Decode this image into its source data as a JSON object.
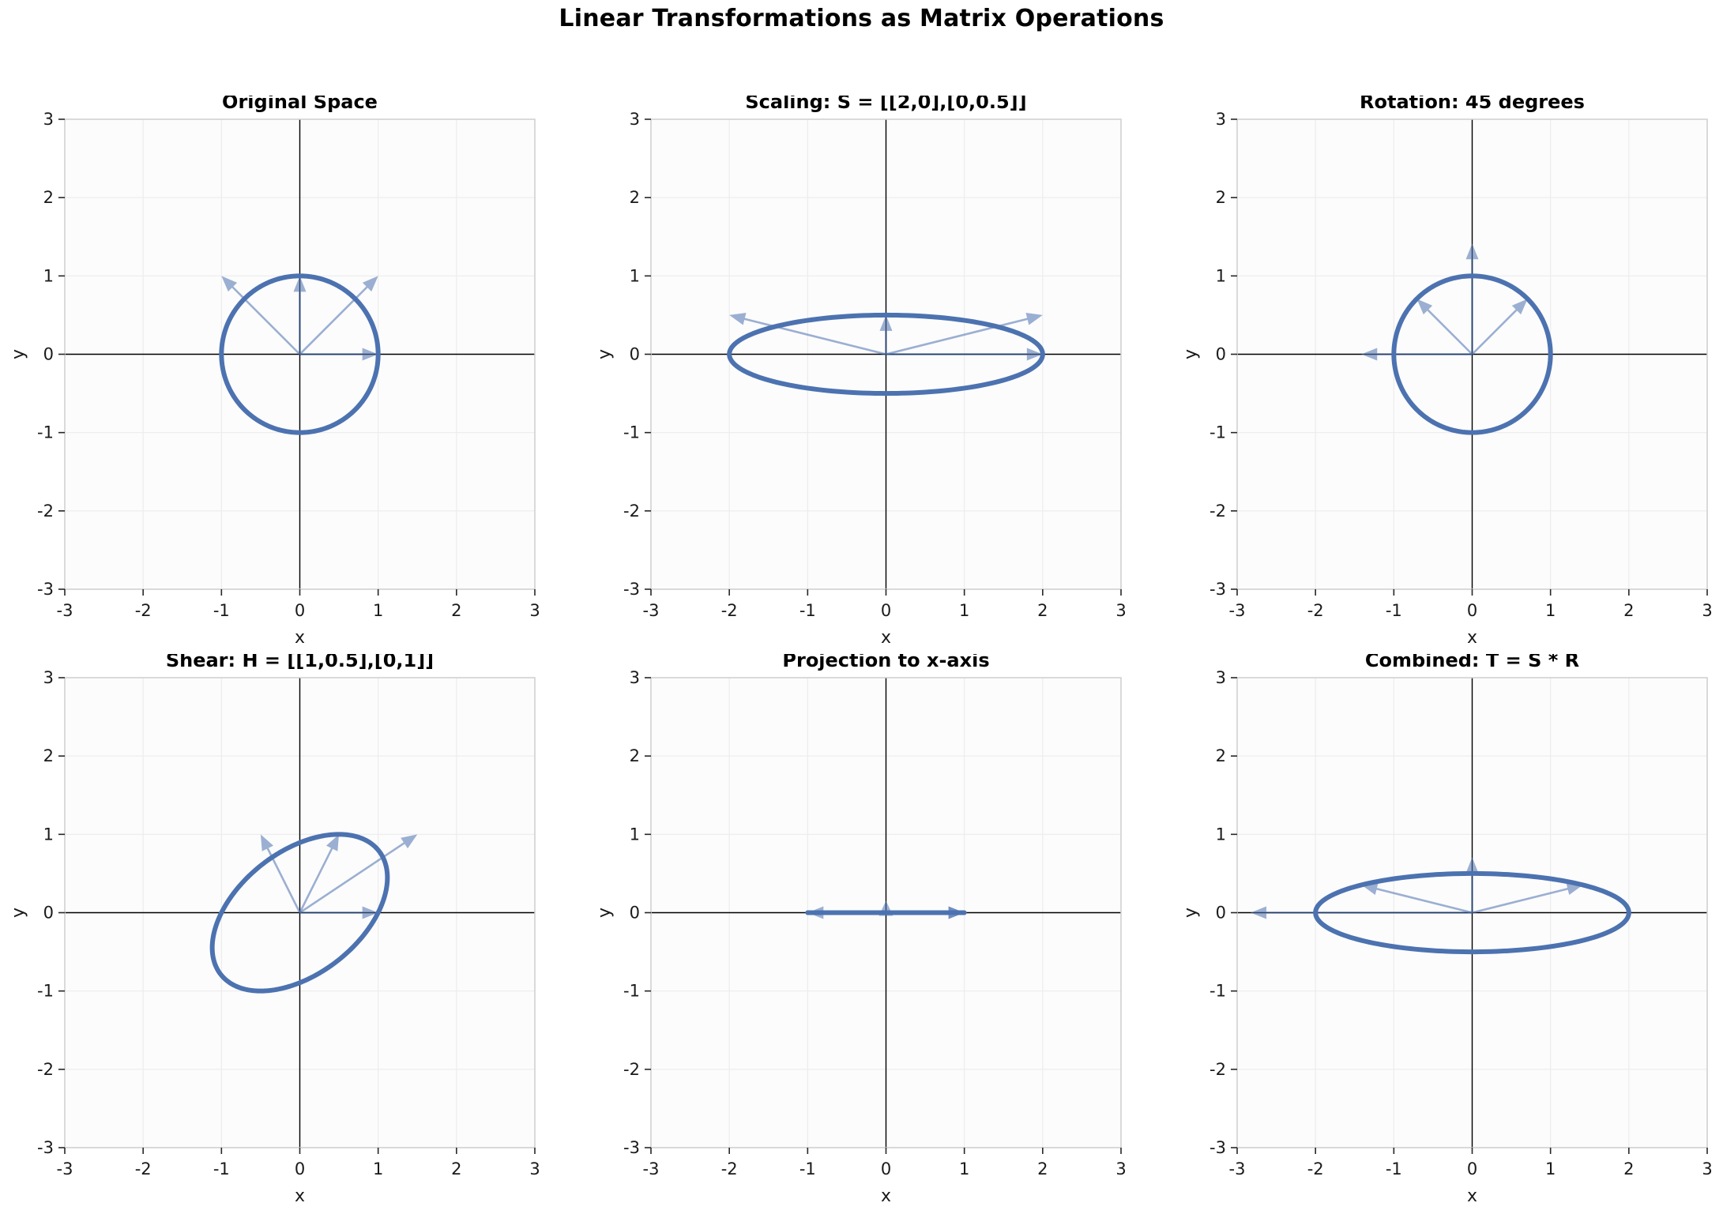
{
  "suptitle": "Linear Transformations as Matrix Operations",
  "axes": {
    "xlabel": "x",
    "ylabel": "y",
    "xlim": [
      -3,
      3
    ],
    "ylim": [
      -3,
      3
    ],
    "xticks": [
      "-3",
      "-2",
      "-1",
      "0",
      "1",
      "2",
      "3"
    ],
    "yticks": [
      "-3",
      "-2",
      "-1",
      "0",
      "1",
      "2",
      "3"
    ],
    "grid": true
  },
  "colors": {
    "shape": "#4C72B0",
    "vector": "#4C72B0",
    "vector_opacity": 0.55,
    "grid": "#ececec",
    "spine": "#cfcfcf",
    "axis_line": "#000000",
    "tick": "#262626",
    "plot_background": "#fcfcfc"
  },
  "chart_data": [
    {
      "type": "line",
      "title": "Original Space",
      "shape": "unit circle transformed by matrix",
      "matrix": [
        [
          1,
          0
        ],
        [
          0,
          1
        ]
      ],
      "vectors": [
        [
          1,
          0
        ],
        [
          0,
          1
        ],
        [
          1,
          1
        ],
        [
          -1,
          1
        ]
      ]
    },
    {
      "type": "line",
      "title": "Scaling: S = [[2,0],[0,0.5]]",
      "shape": "unit circle transformed by matrix",
      "matrix": [
        [
          2,
          0
        ],
        [
          0,
          0.5
        ]
      ],
      "vectors": [
        [
          2,
          0
        ],
        [
          0,
          0.5
        ],
        [
          2,
          0.5
        ],
        [
          -2,
          0.5
        ]
      ]
    },
    {
      "type": "line",
      "title": "Rotation: 45 degrees",
      "shape": "unit circle transformed by matrix",
      "matrix": [
        [
          0.7071,
          -0.7071
        ],
        [
          0.7071,
          0.7071
        ]
      ],
      "vectors": [
        [
          0.7071,
          0.7071
        ],
        [
          -0.7071,
          0.7071
        ],
        [
          0,
          1.4142
        ],
        [
          -1.4142,
          0
        ]
      ]
    },
    {
      "type": "line",
      "title": "Shear: H = [[1,0.5],[0,1]]",
      "shape": "unit circle transformed by matrix",
      "matrix": [
        [
          1,
          0.5
        ],
        [
          0,
          1
        ]
      ],
      "vectors": [
        [
          1,
          0
        ],
        [
          0.5,
          1
        ],
        [
          1.5,
          1
        ],
        [
          -0.5,
          1
        ]
      ]
    },
    {
      "type": "line",
      "title": "Projection to x-axis",
      "shape": "unit circle transformed by matrix (degenerate segment)",
      "matrix": [
        [
          1,
          0
        ],
        [
          0,
          0
        ]
      ],
      "vectors": [
        [
          1,
          0
        ],
        [
          0,
          0
        ],
        [
          1,
          0
        ],
        [
          -1,
          0
        ]
      ]
    },
    {
      "type": "line",
      "title": "Combined: T = S * R",
      "shape": "unit circle transformed by matrix",
      "matrix": [
        [
          1.4142,
          -1.4142
        ],
        [
          0.3536,
          0.3536
        ]
      ],
      "vectors": [
        [
          1.4142,
          0.3536
        ],
        [
          -1.4142,
          0.3536
        ],
        [
          0,
          0.7071
        ],
        [
          -2.8284,
          0
        ]
      ]
    }
  ]
}
